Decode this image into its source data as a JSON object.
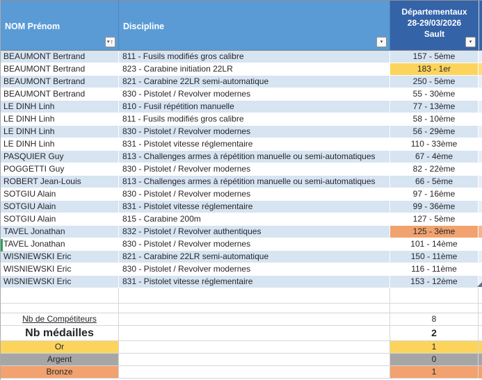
{
  "table": {
    "headers": [
      {
        "label": "NOM Prénom",
        "filter": "sorted-ascending-filter"
      },
      {
        "label": "Discipline",
        "filter": "dropdown-filter"
      },
      {
        "lines": [
          "Départementaux",
          "28-29/03/2026",
          "Sault"
        ],
        "filter": "dropdown-filter"
      }
    ],
    "rows": [
      {
        "name": "BEAUMONT Bertrand",
        "discipline": "811 - Fusils modifiés gros calibre",
        "result": "157 - 5ème",
        "highlight": ""
      },
      {
        "name": "BEAUMONT Bertrand",
        "discipline": "823 - Carabine initiation 22LR",
        "result": "183 - 1er",
        "highlight": "gold"
      },
      {
        "name": "BEAUMONT Bertrand",
        "discipline": "821 - Carabine 22LR semi-automatique",
        "result": "250 - 5ème",
        "highlight": ""
      },
      {
        "name": "BEAUMONT Bertrand",
        "discipline": "830 - Pistolet / Revolver modernes",
        "result": "55 - 30ème",
        "highlight": ""
      },
      {
        "name": "LE DINH Linh",
        "discipline": "810 - Fusil répétition manuelle",
        "result": "77 - 13ème",
        "highlight": ""
      },
      {
        "name": "LE DINH Linh",
        "discipline": "811 - Fusils modifiés gros calibre",
        "result": "58 - 10ème",
        "highlight": ""
      },
      {
        "name": "LE DINH Linh",
        "discipline": "830 - Pistolet / Revolver modernes",
        "result": "56 - 29ème",
        "highlight": ""
      },
      {
        "name": "LE DINH Linh",
        "discipline": "831 - Pistolet vitesse réglementaire",
        "result": "110 - 33ème",
        "highlight": ""
      },
      {
        "name": "PASQUIER Guy",
        "discipline": "813 - Challenges armes à répétition manuelle ou semi-automatiques",
        "result": "67 - 4ème",
        "highlight": ""
      },
      {
        "name": "POGGETTI Guy",
        "discipline": "830 - Pistolet / Revolver modernes",
        "result": "82 - 22ème",
        "highlight": ""
      },
      {
        "name": "ROBERT Jean-Louis",
        "discipline": "813 - Challenges armes à répétition manuelle ou semi-automatiques",
        "result": "66 - 5ème",
        "highlight": ""
      },
      {
        "name": "SOTGIU Alain",
        "discipline": "830 - Pistolet / Revolver modernes",
        "result": "97 - 16ème",
        "highlight": ""
      },
      {
        "name": "SOTGIU Alain",
        "discipline": "831 - Pistolet vitesse réglementaire",
        "result": "99 - 36ème",
        "highlight": ""
      },
      {
        "name": "SOTGIU Alain",
        "discipline": "815 - Carabine 200m",
        "result": "127 - 5ème",
        "highlight": ""
      },
      {
        "name": "TAVEL Jonathan",
        "discipline": "832 - Pistolet / Revolver authentiques",
        "result": "125 - 3ème",
        "highlight": "bronze"
      },
      {
        "name": "TAVEL Jonathan",
        "discipline": "830 - Pistolet / Revolver modernes",
        "result": "101 - 14ème",
        "highlight": ""
      },
      {
        "name": "WISNIEWSKI Eric",
        "discipline": "821 - Carabine 22LR semi-automatique",
        "result": "150 - 11ème",
        "highlight": ""
      },
      {
        "name": "WISNIEWSKI Eric",
        "discipline": "830 - Pistolet / Revolver modernes",
        "result": "116 - 11ème",
        "highlight": ""
      },
      {
        "name": "WISNIEWSKI Eric",
        "discipline": "831 - Pistolet vitesse réglementaire",
        "result": "153 - 12ème",
        "highlight": ""
      }
    ]
  },
  "summary": {
    "competitors_label": "Nb de Compétiteurs",
    "competitors_value": "8",
    "medals_label": "Nb médailles",
    "medals_value": "2",
    "medals": [
      {
        "label": "Or",
        "value": "1"
      },
      {
        "label": "Argent",
        "value": "0"
      },
      {
        "label": "Bronze",
        "value": "1"
      }
    ]
  },
  "icons": {
    "dropdown": "▾",
    "sort_ascending": "↑"
  },
  "colors": {
    "header_light_blue": "#5B9BD5",
    "header_dark_blue": "#3463A8",
    "banded_row_blue": "#D7E4F2",
    "gold": "#FCD45C",
    "silver": "#A6A6A6",
    "bronze": "#F1A26E",
    "selection_green": "#2FA05C"
  }
}
